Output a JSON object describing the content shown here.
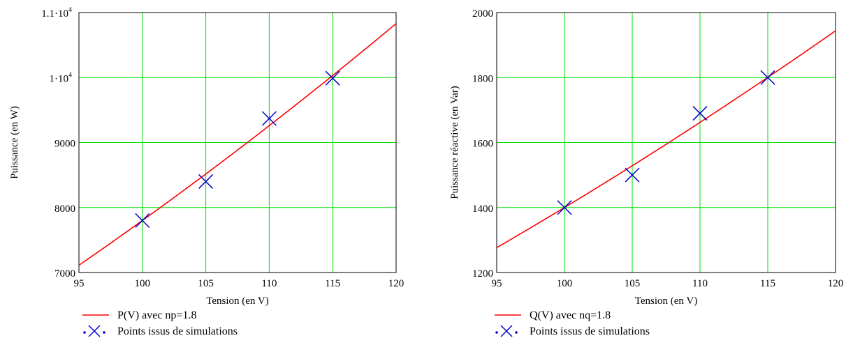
{
  "chart_data": [
    {
      "type": "line",
      "xlabel": "Tension (en V)",
      "ylabel": "Puissance (en W)",
      "xlim": [
        95,
        120
      ],
      "ylim": [
        7000,
        11000
      ],
      "xticks": [
        95,
        100,
        105,
        110,
        115,
        120
      ],
      "yticks": [
        {
          "value": 7000,
          "label": "7000"
        },
        {
          "value": 8000,
          "label": "8000"
        },
        {
          "value": 9000,
          "label": "9000"
        },
        {
          "value": 10000,
          "label": "1·10",
          "exp": "4"
        },
        {
          "value": 11000,
          "label": "1.1·10",
          "exp": "4"
        }
      ],
      "grid": true,
      "curve": {
        "name": "P(V) avec np=1.8",
        "color": "#ff0000",
        "ref_x": 100,
        "ref_y": 7800,
        "exponent": 1.8
      },
      "points": {
        "name": "Points issus de simulations",
        "color": "#0000cc",
        "x": [
          100,
          105,
          110,
          115
        ],
        "y": [
          7800,
          8400,
          9370,
          9990
        ]
      }
    },
    {
      "type": "line",
      "xlabel": "Tension (en V)",
      "ylabel": "Puissance réactive (en Var)",
      "xlim": [
        95,
        120
      ],
      "ylim": [
        1200,
        2000
      ],
      "xticks": [
        95,
        100,
        105,
        110,
        115,
        120
      ],
      "yticks": [
        {
          "value": 1200,
          "label": "1200"
        },
        {
          "value": 1400,
          "label": "1400"
        },
        {
          "value": 1600,
          "label": "1600"
        },
        {
          "value": 1800,
          "label": "1800"
        },
        {
          "value": 2000,
          "label": "2000"
        }
      ],
      "grid": true,
      "curve": {
        "name": "Q(V) avec nq=1.8",
        "color": "#ff0000",
        "ref_x": 100,
        "ref_y": 1400,
        "exponent": 1.8
      },
      "points": {
        "name": "Points issus de simulations",
        "color": "#0000cc",
        "x": [
          100,
          105,
          110,
          115
        ],
        "y": [
          1400,
          1500,
          1690,
          1800
        ]
      }
    }
  ]
}
